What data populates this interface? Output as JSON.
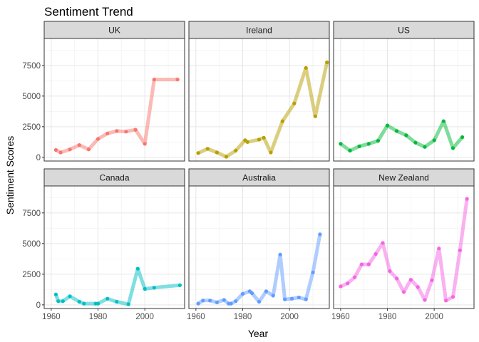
{
  "chart_data": {
    "type": "line",
    "title": "Sentiment Trend",
    "xlabel": "Year",
    "ylabel": "Sentiment Scores",
    "xlim": [
      1957,
      2017
    ],
    "ylim": [
      -300,
      9700
    ],
    "x_ticks": [
      1960,
      1980,
      2000
    ],
    "y_ticks": [
      0,
      2500,
      5000,
      7500
    ],
    "grid": true,
    "facets": [
      {
        "name": "UK",
        "color": "#F8766D",
        "x": [
          1962,
          1964,
          1968,
          1972,
          1976,
          1980,
          1984,
          1988,
          1992,
          1996,
          2000,
          2004,
          2014
        ],
        "values": [
          600,
          400,
          650,
          1000,
          650,
          1500,
          1950,
          2150,
          2100,
          2250,
          1100,
          6350,
          6350
        ]
      },
      {
        "name": "Ireland",
        "color": "#B79F00",
        "x": [
          1961,
          1965,
          1969,
          1973,
          1977,
          1981,
          1982,
          1987,
          1989,
          1992,
          1997,
          2002,
          2007,
          2011,
          2016
        ],
        "values": [
          350,
          700,
          400,
          50,
          550,
          1400,
          1250,
          1450,
          1600,
          400,
          2950,
          4400,
          7300,
          3350,
          7750
        ]
      },
      {
        "name": "US",
        "color": "#00BA38",
        "x": [
          1960,
          1964,
          1968,
          1972,
          1976,
          1980,
          1984,
          1988,
          1992,
          1996,
          2000,
          2004,
          2008,
          2012
        ],
        "values": [
          1100,
          550,
          900,
          1100,
          1350,
          2600,
          2150,
          1800,
          1200,
          850,
          1400,
          2950,
          750,
          1650
        ]
      },
      {
        "name": "Canada",
        "color": "#00BFC4",
        "x": [
          1962,
          1963,
          1965,
          1968,
          1972,
          1974,
          1979,
          1980,
          1984,
          1988,
          1993,
          1997,
          2000,
          2004,
          2015
        ],
        "values": [
          850,
          300,
          300,
          700,
          250,
          100,
          100,
          100,
          500,
          250,
          50,
          2950,
          1300,
          1400,
          1600
        ]
      },
      {
        "name": "Australia",
        "color": "#619CFF",
        "x": [
          1961,
          1963,
          1966,
          1969,
          1972,
          1974,
          1975,
          1977,
          1980,
          1983,
          1984,
          1987,
          1990,
          1993,
          1996,
          1998,
          2001,
          2004,
          2007,
          2010,
          2013
        ],
        "values": [
          100,
          350,
          350,
          200,
          400,
          100,
          100,
          300,
          900,
          1100,
          950,
          250,
          1100,
          750,
          4100,
          450,
          500,
          600,
          450,
          2650,
          5750
        ]
      },
      {
        "name": "New Zealand",
        "color": "#F564E3",
        "x": [
          1960,
          1963,
          1966,
          1969,
          1972,
          1975,
          1978,
          1981,
          1984,
          1987,
          1990,
          1993,
          1996,
          1999,
          2002,
          2005,
          2008,
          2011,
          2014
        ],
        "values": [
          1500,
          1750,
          2250,
          3300,
          3300,
          4150,
          5050,
          2750,
          2150,
          1050,
          2050,
          1450,
          400,
          2000,
          4600,
          350,
          650,
          4450,
          8650
        ]
      }
    ]
  }
}
